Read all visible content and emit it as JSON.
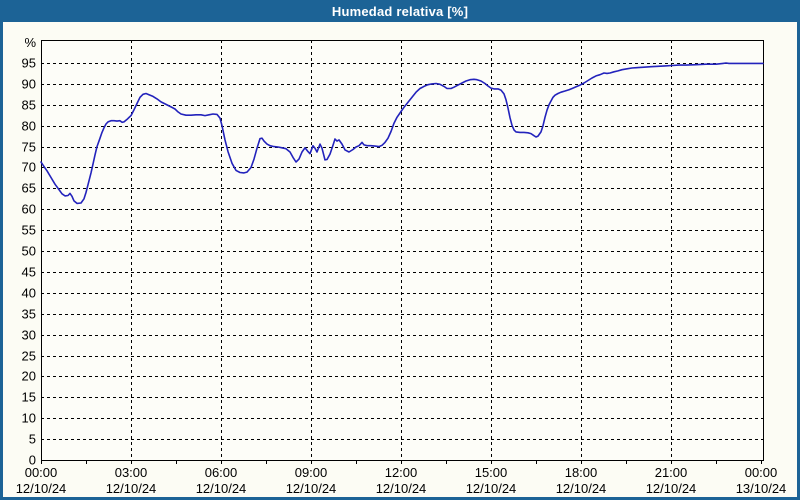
{
  "window": {
    "title": "Humedad relativa [%]",
    "titlebar_color": "#1C6396",
    "border_color": "#1C6396",
    "background_color": "#FCFCF4"
  },
  "chart_data": {
    "type": "line",
    "title": "Humedad relativa [%]",
    "ylabel": "%",
    "xlabel": "",
    "legend": "none",
    "grid": "dashed-black",
    "line_color": "#2323BC",
    "plot_background": "#FDFDF8",
    "ylim": [
      0,
      100.5
    ],
    "y_ticks": [
      0,
      5,
      10,
      15,
      20,
      25,
      30,
      35,
      40,
      45,
      50,
      55,
      60,
      65,
      70,
      75,
      80,
      85,
      90,
      95
    ],
    "x_range_minutes": [
      0,
      1440
    ],
    "x_minor_tick_minutes": 90,
    "x_major_tick_minutes": 180,
    "x_ticks": [
      {
        "time": "00:00",
        "date": "12/10/24"
      },
      {
        "time": "03:00",
        "date": "12/10/24"
      },
      {
        "time": "06:00",
        "date": "12/10/24"
      },
      {
        "time": "09:00",
        "date": "12/10/24"
      },
      {
        "time": "12:00",
        "date": "12/10/24"
      },
      {
        "time": "15:00",
        "date": "12/10/24"
      },
      {
        "time": "18:00",
        "date": "12/10/24"
      },
      {
        "time": "21:00",
        "date": "12/10/24"
      },
      {
        "time": "00:00",
        "date": "13/10/24"
      }
    ],
    "points_minutes_percent": [
      [
        0,
        71.3
      ],
      [
        6,
        70.2
      ],
      [
        12,
        69.2
      ],
      [
        20,
        67.6
      ],
      [
        28,
        66
      ],
      [
        36,
        64.7
      ],
      [
        42,
        63.7
      ],
      [
        48,
        63.2
      ],
      [
        54,
        63.3
      ],
      [
        58,
        63.8
      ],
      [
        62,
        63.1
      ],
      [
        66,
        62
      ],
      [
        72,
        61.4
      ],
      [
        80,
        61.5
      ],
      [
        86,
        62.5
      ],
      [
        90,
        64
      ],
      [
        96,
        66.8
      ],
      [
        100,
        68.7
      ],
      [
        104,
        70.8
      ],
      [
        108,
        73
      ],
      [
        112,
        75
      ],
      [
        118,
        77
      ],
      [
        122,
        78.4
      ],
      [
        126,
        79.5
      ],
      [
        130,
        80.4
      ],
      [
        134,
        80.9
      ],
      [
        140,
        81.2
      ],
      [
        146,
        81.2
      ],
      [
        152,
        81.1
      ],
      [
        158,
        81.2
      ],
      [
        162,
        80.8
      ],
      [
        166,
        80.9
      ],
      [
        172,
        81.5
      ],
      [
        180,
        82.4
      ],
      [
        186,
        83.8
      ],
      [
        192,
        85.3
      ],
      [
        198,
        86.8
      ],
      [
        204,
        87.5
      ],
      [
        210,
        87.7
      ],
      [
        216,
        87.4
      ],
      [
        224,
        87
      ],
      [
        232,
        86.4
      ],
      [
        240,
        85.7
      ],
      [
        250,
        85.1
      ],
      [
        260,
        84.5
      ],
      [
        268,
        84
      ],
      [
        274,
        83.3
      ],
      [
        280,
        82.8
      ],
      [
        290,
        82.5
      ],
      [
        300,
        82.5
      ],
      [
        310,
        82.6
      ],
      [
        320,
        82.6
      ],
      [
        328,
        82.4
      ],
      [
        336,
        82.6
      ],
      [
        344,
        82.8
      ],
      [
        352,
        82.7
      ],
      [
        358,
        81.8
      ],
      [
        362,
        80
      ],
      [
        368,
        76.6
      ],
      [
        374,
        73.8
      ],
      [
        382,
        71
      ],
      [
        390,
        69.3
      ],
      [
        398,
        68.8
      ],
      [
        406,
        68.7
      ],
      [
        412,
        68.9
      ],
      [
        420,
        70
      ],
      [
        426,
        72
      ],
      [
        432,
        74.6
      ],
      [
        438,
        76.9
      ],
      [
        442,
        77
      ],
      [
        446,
        76.3
      ],
      [
        452,
        75.6
      ],
      [
        458,
        75.2
      ],
      [
        466,
        75
      ],
      [
        474,
        74.9
      ],
      [
        482,
        74.7
      ],
      [
        490,
        74.5
      ],
      [
        498,
        73.7
      ],
      [
        504,
        72.4
      ],
      [
        510,
        71.3
      ],
      [
        516,
        72
      ],
      [
        522,
        73.7
      ],
      [
        528,
        74.7
      ],
      [
        534,
        73.8
      ],
      [
        538,
        73.3
      ],
      [
        544,
        75.2
      ],
      [
        548,
        74.6
      ],
      [
        552,
        73.7
      ],
      [
        558,
        75.6
      ],
      [
        562,
        74.6
      ],
      [
        568,
        71.8
      ],
      [
        572,
        71.9
      ],
      [
        578,
        73.2
      ],
      [
        584,
        75.3
      ],
      [
        588,
        76.8
      ],
      [
        592,
        76.3
      ],
      [
        596,
        76.6
      ],
      [
        602,
        75.6
      ],
      [
        608,
        74.2
      ],
      [
        616,
        73.7
      ],
      [
        624,
        74.3
      ],
      [
        630,
        74.9
      ],
      [
        636,
        75.2
      ],
      [
        642,
        76
      ],
      [
        646,
        75.4
      ],
      [
        652,
        75.2
      ],
      [
        660,
        75.2
      ],
      [
        668,
        75.1
      ],
      [
        676,
        75
      ],
      [
        682,
        75.3
      ],
      [
        688,
        76
      ],
      [
        694,
        77
      ],
      [
        700,
        78.6
      ],
      [
        706,
        80.6
      ],
      [
        712,
        82
      ],
      [
        720,
        83.4
      ],
      [
        726,
        84.4
      ],
      [
        734,
        85.6
      ],
      [
        742,
        86.8
      ],
      [
        750,
        88
      ],
      [
        758,
        88.9
      ],
      [
        766,
        89.4
      ],
      [
        774,
        89.8
      ],
      [
        782,
        90
      ],
      [
        790,
        90.1
      ],
      [
        798,
        89.9
      ],
      [
        806,
        89.4
      ],
      [
        812,
        88.9
      ],
      [
        820,
        88.9
      ],
      [
        826,
        89.2
      ],
      [
        834,
        89.7
      ],
      [
        842,
        90.2
      ],
      [
        850,
        90.7
      ],
      [
        858,
        91
      ],
      [
        866,
        91.1
      ],
      [
        872,
        91
      ],
      [
        880,
        90.7
      ],
      [
        888,
        90.1
      ],
      [
        894,
        89.5
      ],
      [
        900,
        89
      ],
      [
        906,
        88.8
      ],
      [
        914,
        88.8
      ],
      [
        920,
        88.5
      ],
      [
        926,
        87.6
      ],
      [
        930,
        86.2
      ],
      [
        934,
        84.2
      ],
      [
        938,
        81.9
      ],
      [
        942,
        80.1
      ],
      [
        946,
        79
      ],
      [
        950,
        78.5
      ],
      [
        958,
        78.4
      ],
      [
        966,
        78.4
      ],
      [
        974,
        78.3
      ],
      [
        980,
        78.1
      ],
      [
        986,
        77.6
      ],
      [
        990,
        77.3
      ],
      [
        994,
        77.5
      ],
      [
        1000,
        78.5
      ],
      [
        1004,
        80
      ],
      [
        1008,
        82
      ],
      [
        1012,
        83.7
      ],
      [
        1016,
        85
      ],
      [
        1020,
        85.9
      ],
      [
        1024,
        86.8
      ],
      [
        1028,
        87.3
      ],
      [
        1034,
        87.7
      ],
      [
        1040,
        88
      ],
      [
        1048,
        88.3
      ],
      [
        1056,
        88.6
      ],
      [
        1064,
        89
      ],
      [
        1072,
        89.4
      ],
      [
        1078,
        89.7
      ],
      [
        1086,
        90.2
      ],
      [
        1094,
        90.8
      ],
      [
        1102,
        91.4
      ],
      [
        1110,
        91.9
      ],
      [
        1118,
        92.2
      ],
      [
        1126,
        92.6
      ],
      [
        1132,
        92.5
      ],
      [
        1138,
        92.6
      ],
      [
        1146,
        92.9
      ],
      [
        1154,
        93.1
      ],
      [
        1162,
        93.4
      ],
      [
        1172,
        93.6
      ],
      [
        1182,
        93.8
      ],
      [
        1194,
        93.9
      ],
      [
        1206,
        94
      ],
      [
        1220,
        94.1
      ],
      [
        1234,
        94.2
      ],
      [
        1248,
        94.3
      ],
      [
        1262,
        94.4
      ],
      [
        1276,
        94.5
      ],
      [
        1290,
        94.5
      ],
      [
        1310,
        94.6
      ],
      [
        1330,
        94.7
      ],
      [
        1350,
        94.7
      ],
      [
        1364,
        94.9
      ],
      [
        1370,
        95
      ],
      [
        1376,
        94.9
      ],
      [
        1390,
        94.9
      ],
      [
        1410,
        94.9
      ],
      [
        1430,
        94.9
      ],
      [
        1440,
        94.9
      ]
    ]
  }
}
